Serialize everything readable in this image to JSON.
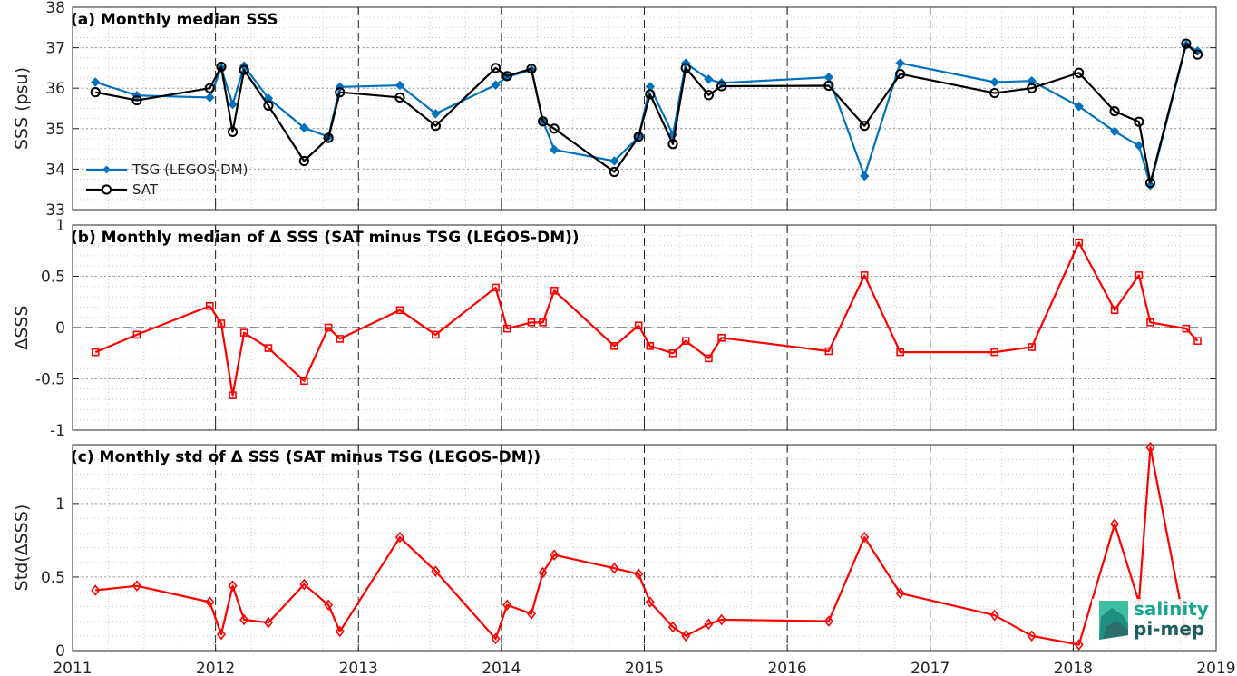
{
  "chart_data": [
    {
      "type": "line",
      "title": "(a) Monthly median SSS",
      "ylabel": "SSS (psu)",
      "xlim": [
        2011,
        2019
      ],
      "ylim": [
        33,
        38
      ],
      "yticks": [
        "33",
        "34",
        "35",
        "36",
        "37",
        "38"
      ],
      "xticks": [
        "2011",
        "2012",
        "2013",
        "2014",
        "2015",
        "2016",
        "2017",
        "2018",
        "2019"
      ],
      "grid": true,
      "legend_position": "lower-left",
      "series": [
        {
          "name": "TSG (LEGOS-DM)",
          "color": "#0072BD",
          "marker": "filled-diamond",
          "x": [
            2011.16,
            2011.45,
            2011.96,
            2012.04,
            2012.12,
            2012.2,
            2012.37,
            2012.62,
            2012.79,
            2012.87,
            2013.29,
            2013.54,
            2013.96,
            2014.04,
            2014.21,
            2014.29,
            2014.37,
            2014.79,
            2014.96,
            2015.04,
            2015.2,
            2015.29,
            2015.45,
            2015.54,
            2016.29,
            2016.54,
            2016.79,
            2017.45,
            2017.71,
            2018.04,
            2018.29,
            2018.46,
            2018.54,
            2018.79,
            2018.87
          ],
          "values": [
            36.15,
            35.82,
            35.77,
            36.5,
            35.6,
            36.55,
            35.75,
            35.02,
            34.8,
            36.03,
            36.07,
            35.37,
            36.08,
            36.28,
            36.45,
            35.2,
            34.48,
            34.2,
            34.8,
            36.04,
            34.85,
            36.62,
            36.22,
            36.13,
            36.27,
            33.83,
            36.62,
            36.15,
            36.18,
            35.55,
            34.93,
            34.58,
            33.6,
            37.07,
            36.92
          ]
        },
        {
          "name": "SAT",
          "color": "#000000",
          "marker": "open-circle",
          "x": [
            2011.16,
            2011.45,
            2011.96,
            2012.04,
            2012.12,
            2012.2,
            2012.37,
            2012.62,
            2012.79,
            2012.87,
            2013.29,
            2013.54,
            2013.96,
            2014.04,
            2014.21,
            2014.29,
            2014.37,
            2014.79,
            2014.96,
            2015.04,
            2015.2,
            2015.29,
            2015.45,
            2015.54,
            2016.29,
            2016.54,
            2016.79,
            2017.45,
            2017.71,
            2018.04,
            2018.29,
            2018.46,
            2018.54,
            2018.79,
            2018.87
          ],
          "values": [
            35.9,
            35.7,
            36.0,
            36.53,
            34.92,
            36.45,
            35.57,
            34.2,
            34.77,
            35.9,
            35.77,
            35.07,
            36.5,
            36.3,
            36.48,
            35.18,
            35.0,
            33.93,
            34.8,
            35.85,
            34.62,
            36.5,
            35.83,
            36.05,
            36.06,
            35.07,
            36.35,
            35.88,
            36.0,
            36.38,
            35.43,
            35.17,
            33.66,
            37.1,
            36.83
          ]
        }
      ]
    },
    {
      "type": "line",
      "title": "(b) Monthly median of Δ SSS (SAT minus TSG (LEGOS-DM))",
      "ylabel": "ΔSSS",
      "xlim": [
        2011,
        2019
      ],
      "ylim": [
        -1,
        1
      ],
      "yticks": [
        "-1",
        "-0.5",
        "0",
        "0.5",
        "1"
      ],
      "xticks": [
        "2011",
        "2012",
        "2013",
        "2014",
        "2015",
        "2016",
        "2017",
        "2018",
        "2019"
      ],
      "grid": true,
      "zero_line": "dashed",
      "series": [
        {
          "color": "#FF0000",
          "marker": "open-square",
          "x": [
            2011.16,
            2011.45,
            2011.96,
            2012.04,
            2012.12,
            2012.2,
            2012.37,
            2012.62,
            2012.79,
            2012.87,
            2013.29,
            2013.54,
            2013.96,
            2014.04,
            2014.21,
            2014.29,
            2014.37,
            2014.79,
            2014.96,
            2015.04,
            2015.2,
            2015.29,
            2015.45,
            2015.54,
            2016.29,
            2016.54,
            2016.79,
            2017.45,
            2017.71,
            2018.04,
            2018.29,
            2018.46,
            2018.54,
            2018.79,
            2018.87
          ],
          "values": [
            -0.24,
            -0.07,
            0.21,
            0.04,
            -0.66,
            -0.05,
            -0.2,
            -0.52,
            0.0,
            -0.11,
            0.17,
            -0.07,
            0.39,
            -0.01,
            0.05,
            0.05,
            0.36,
            -0.18,
            0.02,
            -0.18,
            -0.25,
            -0.13,
            -0.3,
            -0.1,
            -0.23,
            0.51,
            -0.24,
            -0.24,
            -0.19,
            0.83,
            0.17,
            0.51,
            0.05,
            -0.01,
            -0.13
          ]
        }
      ]
    },
    {
      "type": "line",
      "title": "(c) Monthly std of Δ SSS (SAT minus TSG (LEGOS-DM))",
      "ylabel": "Std(ΔSSS)",
      "xlim": [
        2011,
        2019
      ],
      "ylim": [
        0,
        1.4
      ],
      "yticks": [
        "0",
        "0.5",
        "1"
      ],
      "xticks": [
        "2011",
        "2012",
        "2013",
        "2014",
        "2015",
        "2016",
        "2017",
        "2018",
        "2019"
      ],
      "grid": true,
      "series": [
        {
          "color": "#FF0000",
          "marker": "open-diamond",
          "x": [
            2011.16,
            2011.45,
            2011.96,
            2012.04,
            2012.12,
            2012.2,
            2012.37,
            2012.62,
            2012.79,
            2012.87,
            2013.29,
            2013.54,
            2013.96,
            2014.04,
            2014.21,
            2014.29,
            2014.37,
            2014.79,
            2014.96,
            2015.04,
            2015.2,
            2015.29,
            2015.45,
            2015.54,
            2016.29,
            2016.54,
            2016.79,
            2017.45,
            2017.71,
            2018.04,
            2018.29,
            2018.46,
            2018.54,
            2018.79,
            2018.87
          ],
          "values": [
            0.41,
            0.44,
            0.33,
            0.11,
            0.44,
            0.21,
            0.19,
            0.45,
            0.31,
            0.13,
            0.77,
            0.54,
            0.08,
            0.31,
            0.25,
            0.53,
            0.65,
            0.56,
            0.52,
            0.33,
            0.16,
            0.1,
            0.18,
            0.21,
            0.2,
            0.77,
            0.39,
            0.24,
            0.1,
            0.04,
            0.86,
            0.33,
            1.38,
            0.12,
            0.14
          ]
        }
      ]
    }
  ],
  "logo": {
    "line1": "salinity",
    "line2": "pi-mep"
  }
}
